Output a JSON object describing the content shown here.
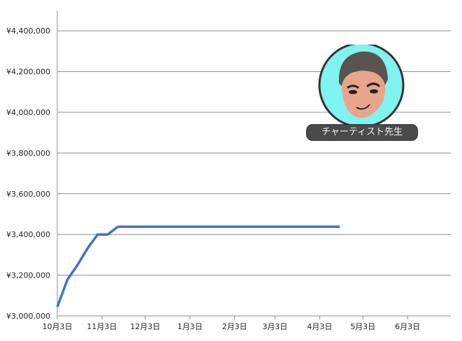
{
  "chart_data": {
    "type": "line",
    "title": "",
    "xlabel": "",
    "ylabel": "",
    "x": [
      "10/3",
      "10/10",
      "10/17",
      "10/24",
      "10/31",
      "11/7",
      "11/14",
      "11/21",
      "11/28",
      "12/5",
      "12/12",
      "12/19",
      "12/26",
      "1/2",
      "1/9",
      "1/16",
      "1/23",
      "1/30",
      "2/6",
      "2/13",
      "2/20",
      "2/27",
      "3/6",
      "3/13",
      "3/20",
      "3/27",
      "4/3",
      "4/10",
      "4/17"
    ],
    "series": [
      {
        "values": [
          3044000,
          3178000,
          3250000,
          3332000,
          3400000,
          3400000,
          3438000,
          3438000,
          3438000,
          3438000,
          3438000,
          3438000,
          3438000,
          3438000,
          3438000,
          3438000,
          3438000,
          3438000,
          3438000,
          3438000,
          3438000,
          3438000,
          3438000,
          3438000,
          3438000,
          3438000,
          3438000,
          3438000,
          3438000
        ],
        "color": "#4472c4"
      }
    ],
    "ylim": [
      3000000,
      4500000
    ],
    "yticks": [
      3000000,
      3200000,
      3400000,
      3600000,
      3800000,
      4000000,
      4200000,
      4400000
    ],
    "ytick_labels": [
      "¥3,000,000",
      "¥3,200,000",
      "¥3,400,000",
      "¥3,600,000",
      "¥3,800,000",
      "¥4,000,000",
      "¥4,200,000",
      "¥4,400,000"
    ],
    "xlim": [
      "10/3",
      "7/3"
    ],
    "xticks": [
      "10/3",
      "11/3",
      "12/3",
      "1/3",
      "2/3",
      "3/3",
      "4/3",
      "5/3",
      "6/3"
    ],
    "xtick_labels": [
      "10月3日",
      "11月3日",
      "12月3日",
      "1月3日",
      "2月3日",
      "3月3日",
      "4月3日",
      "5月3日",
      "6月3日"
    ],
    "grid": "horizontal",
    "legend": "none"
  },
  "mascot": {
    "label": "チャーティスト先生",
    "bg_color": "#7ff3f0"
  }
}
